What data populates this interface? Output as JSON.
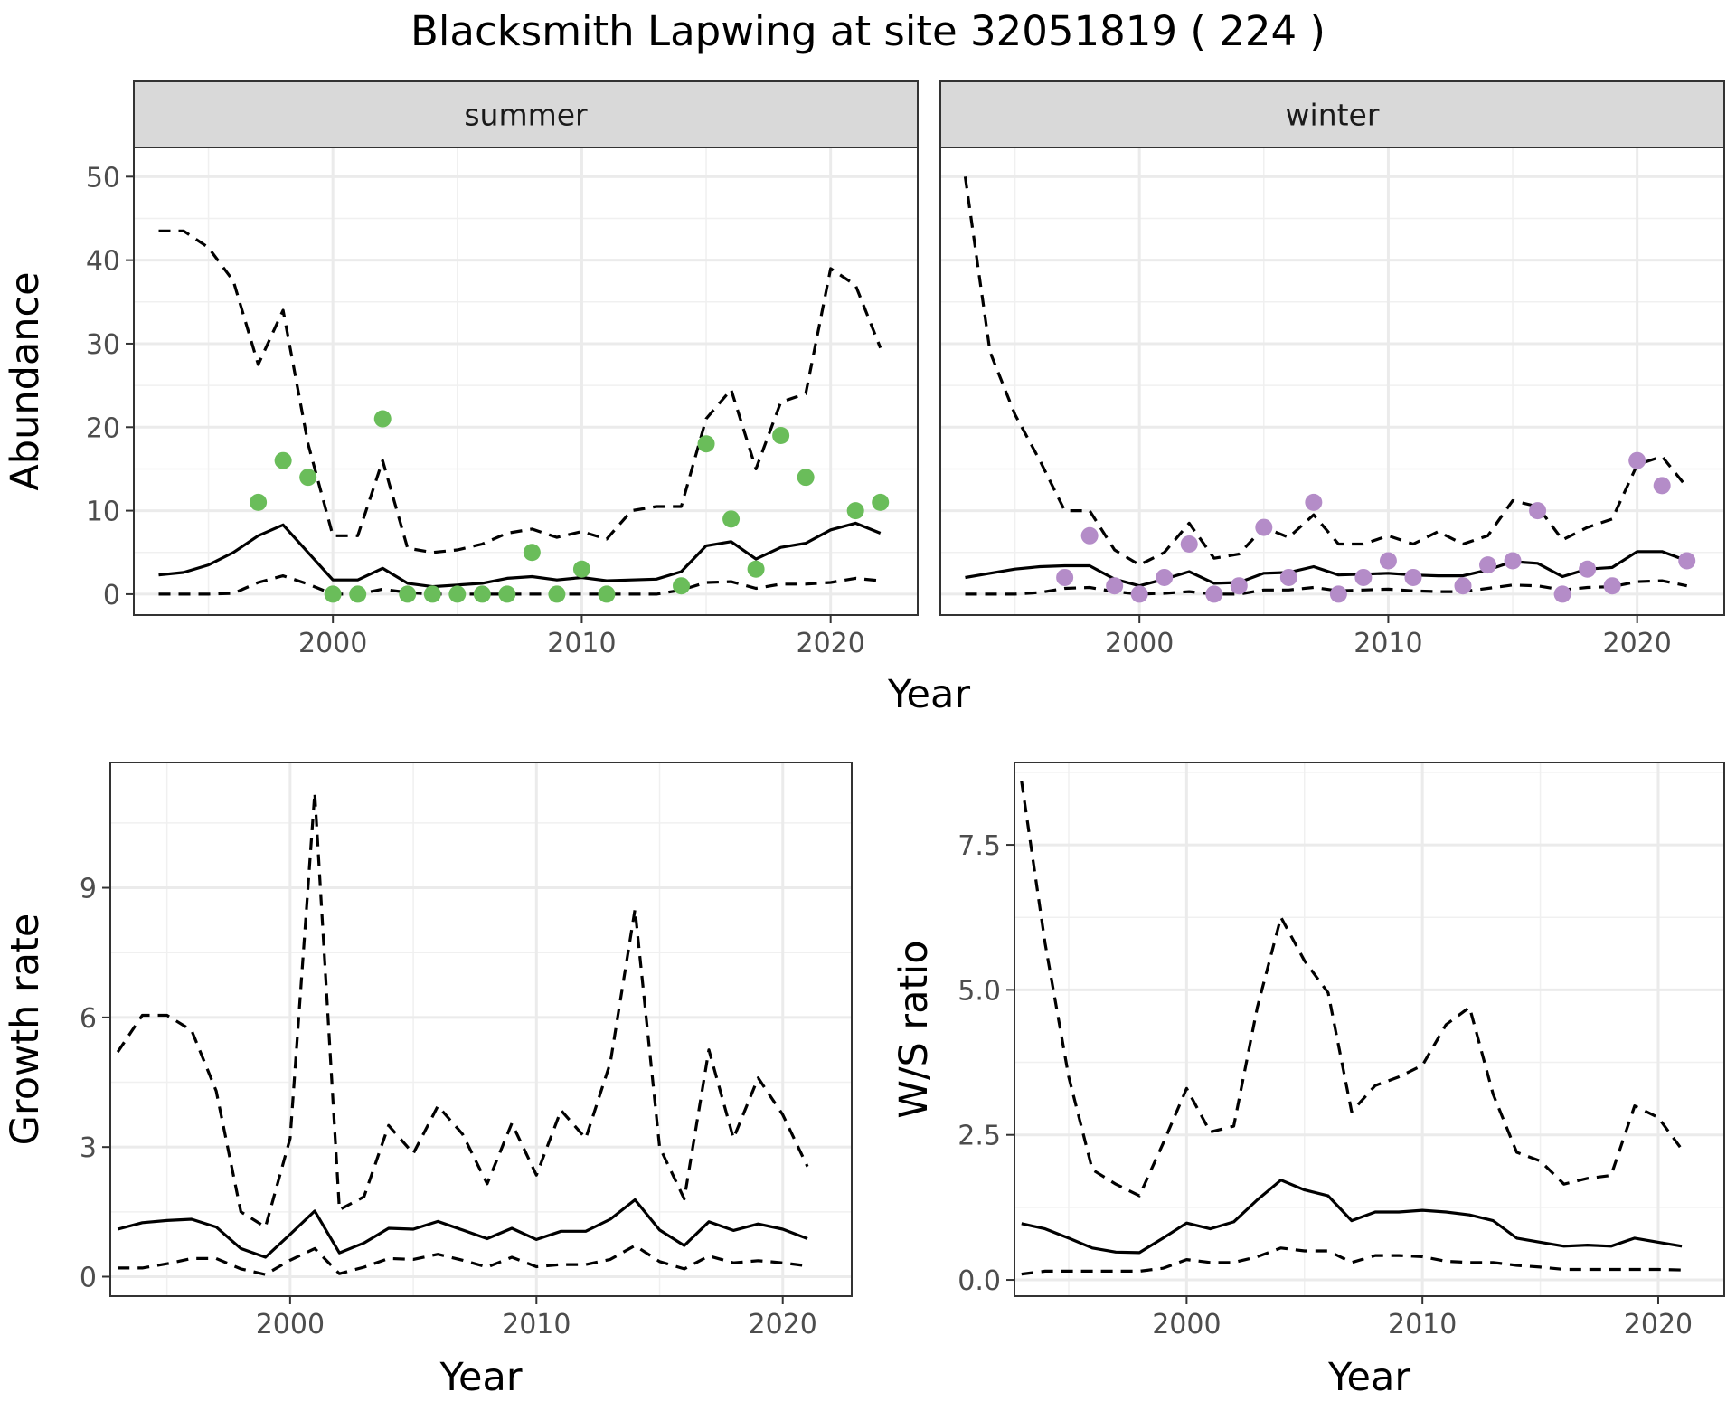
{
  "title": "Blacksmith Lapwing at site 32051819 ( 224 )",
  "chart_data": [
    {
      "type": "line",
      "panel": "summer",
      "xlabel": "Year",
      "ylabel": "Abundance",
      "xlim": [
        1992,
        2023.5
      ],
      "ylim": [
        -2.5,
        53.5
      ],
      "xticks": [
        2000,
        2010,
        2020
      ],
      "yticks": [
        0,
        10,
        20,
        30,
        40,
        50
      ],
      "grid": true,
      "point_color": "#6abd5a",
      "x": [
        1993,
        1994,
        1995,
        1996,
        1997,
        1998,
        1999,
        2000,
        2001,
        2002,
        2003,
        2004,
        2005,
        2006,
        2007,
        2008,
        2009,
        2010,
        2011,
        2012,
        2013,
        2014,
        2015,
        2016,
        2017,
        2018,
        2019,
        2020,
        2021,
        2022
      ],
      "mean": [
        2.3,
        2.6,
        3.5,
        5.0,
        7.0,
        8.3,
        5.0,
        1.7,
        1.7,
        3.1,
        1.3,
        0.9,
        1.1,
        1.3,
        1.9,
        2.1,
        1.7,
        2.0,
        1.6,
        1.7,
        1.8,
        2.7,
        5.8,
        6.3,
        4.2,
        5.6,
        6.1,
        7.7,
        8.5,
        7.3
      ],
      "upper": [
        43.5,
        43.5,
        41.5,
        37.5,
        27.5,
        34.0,
        18.0,
        7.0,
        7.0,
        16.0,
        5.5,
        5.0,
        5.3,
        6.0,
        7.3,
        7.8,
        6.8,
        7.5,
        6.6,
        10.0,
        10.5,
        10.5,
        21.0,
        24.5,
        15.0,
        23.0,
        24.0,
        39.0,
        37.0,
        29.5
      ],
      "lower": [
        0.0,
        0.0,
        0.0,
        0.1,
        1.4,
        2.2,
        1.2,
        0.0,
        0.0,
        0.6,
        0.2,
        0.0,
        0.0,
        0.0,
        0.0,
        0.0,
        0.0,
        0.0,
        0.0,
        0.0,
        0.0,
        0.5,
        1.4,
        1.5,
        0.7,
        1.2,
        1.2,
        1.4,
        1.9,
        1.6
      ],
      "points": {
        "x": [
          1997,
          1998,
          1999,
          2000,
          2001,
          2002,
          2003,
          2004,
          2005,
          2006,
          2007,
          2008,
          2009,
          2010,
          2011,
          2014,
          2015,
          2016,
          2017,
          2018,
          2019,
          2021,
          2022
        ],
        "y": [
          11,
          16,
          14,
          0,
          0,
          21,
          0,
          0,
          0,
          0,
          0,
          5,
          0,
          3,
          0,
          1,
          18,
          9,
          3,
          19,
          14,
          10,
          11
        ]
      }
    },
    {
      "type": "line",
      "panel": "winter",
      "xlabel": "Year",
      "ylabel": "Abundance",
      "xlim": [
        1992,
        2023.5
      ],
      "ylim": [
        -2.5,
        53.5
      ],
      "xticks": [
        2000,
        2010,
        2020
      ],
      "yticks": [
        0,
        10,
        20,
        30,
        40,
        50
      ],
      "grid": true,
      "point_color": "#b48cc8",
      "x": [
        1993,
        1994,
        1995,
        1996,
        1997,
        1998,
        1999,
        2000,
        2001,
        2002,
        2003,
        2004,
        2005,
        2006,
        2007,
        2008,
        2009,
        2010,
        2011,
        2012,
        2013,
        2014,
        2015,
        2016,
        2017,
        2018,
        2019,
        2020,
        2021,
        2022
      ],
      "mean": [
        2.0,
        2.5,
        3.0,
        3.3,
        3.4,
        3.4,
        1.8,
        1.0,
        1.8,
        2.7,
        1.3,
        1.4,
        2.5,
        2.6,
        3.3,
        2.3,
        2.4,
        2.5,
        2.3,
        2.2,
        2.2,
        2.9,
        3.9,
        3.7,
        2.1,
        3.0,
        3.2,
        5.1,
        5.1,
        4.0
      ],
      "upper": [
        50.0,
        29.0,
        21.5,
        16.0,
        10.0,
        10.0,
        5.3,
        3.5,
        5.0,
        8.5,
        4.3,
        4.8,
        8.0,
        6.8,
        9.5,
        6.0,
        6.0,
        7.0,
        6.0,
        7.5,
        6.0,
        7.0,
        11.2,
        10.5,
        6.5,
        8.0,
        9.0,
        15.5,
        16.5,
        12.8
      ],
      "lower": [
        0.0,
        0.0,
        0.0,
        0.2,
        0.7,
        0.8,
        0.3,
        0.0,
        0.1,
        0.3,
        0.0,
        0.0,
        0.5,
        0.5,
        0.8,
        0.4,
        0.5,
        0.6,
        0.4,
        0.3,
        0.3,
        0.7,
        1.1,
        1.0,
        0.5,
        0.8,
        0.9,
        1.5,
        1.6,
        1.0
      ],
      "points": {
        "x": [
          1997,
          1998,
          1999,
          2000,
          2001,
          2002,
          2003,
          2004,
          2005,
          2006,
          2007,
          2008,
          2009,
          2010,
          2011,
          2013,
          2014,
          2015,
          2016,
          2017,
          2018,
          2019,
          2020,
          2021,
          2022
        ],
        "y": [
          2,
          7,
          1,
          0,
          2,
          6,
          0,
          1,
          8,
          2,
          11,
          0,
          2,
          4,
          2,
          1,
          3.5,
          4,
          10,
          0,
          3,
          1,
          16,
          13,
          4
        ]
      }
    },
    {
      "type": "line",
      "panel": "growth",
      "xlabel": "Year",
      "ylabel": "Growth rate",
      "xlim": [
        1992.7,
        2022.8
      ],
      "ylim": [
        -0.45,
        11.9
      ],
      "xticks": [
        2000,
        2010,
        2020
      ],
      "yticks": [
        0,
        3,
        6,
        9
      ],
      "grid": true,
      "x": [
        1993,
        1994,
        1995,
        1996,
        1997,
        1998,
        1999,
        2000,
        2001,
        2002,
        2003,
        2004,
        2005,
        2006,
        2007,
        2008,
        2009,
        2010,
        2011,
        2012,
        2013,
        2014,
        2015,
        2016,
        2017,
        2018,
        2019,
        2020,
        2021
      ],
      "mean": [
        1.1,
        1.25,
        1.3,
        1.33,
        1.15,
        0.65,
        0.45,
        0.98,
        1.52,
        0.55,
        0.78,
        1.12,
        1.1,
        1.28,
        1.08,
        0.88,
        1.12,
        0.86,
        1.05,
        1.05,
        1.33,
        1.78,
        1.08,
        0.72,
        1.27,
        1.07,
        1.22,
        1.1,
        0.88
      ],
      "upper": [
        5.2,
        6.05,
        6.05,
        5.7,
        4.3,
        1.5,
        1.15,
        3.2,
        11.2,
        1.55,
        1.85,
        3.5,
        2.85,
        3.95,
        3.3,
        2.15,
        3.55,
        2.35,
        3.85,
        3.2,
        4.95,
        8.5,
        3.0,
        1.8,
        5.25,
        3.2,
        4.6,
        3.75,
        2.55
      ],
      "lower": [
        0.2,
        0.2,
        0.3,
        0.42,
        0.42,
        0.18,
        0.05,
        0.38,
        0.65,
        0.07,
        0.22,
        0.42,
        0.4,
        0.52,
        0.38,
        0.22,
        0.45,
        0.23,
        0.28,
        0.28,
        0.4,
        0.72,
        0.35,
        0.18,
        0.48,
        0.32,
        0.37,
        0.32,
        0.25
      ]
    },
    {
      "type": "line",
      "panel": "ratio",
      "xlabel": "Year",
      "ylabel": "W/S ratio",
      "xlim": [
        1992.7,
        2022.8
      ],
      "ylim": [
        -0.28,
        8.92
      ],
      "xticks": [
        2000,
        2010,
        2020
      ],
      "yticks": [
        0.0,
        2.5,
        5.0,
        7.5
      ],
      "yticklabels": [
        "0.0",
        "2.5",
        "5.0",
        "7.5"
      ],
      "grid": true,
      "x": [
        1993,
        1994,
        1995,
        1996,
        1997,
        1998,
        1999,
        2000,
        2001,
        2002,
        2003,
        2004,
        2005,
        2006,
        2007,
        2008,
        2009,
        2010,
        2011,
        2012,
        2013,
        2014,
        2015,
        2016,
        2017,
        2018,
        2019,
        2020,
        2021
      ],
      "mean": [
        0.97,
        0.88,
        0.72,
        0.55,
        0.48,
        0.47,
        0.72,
        0.98,
        0.88,
        1.0,
        1.38,
        1.72,
        1.55,
        1.45,
        1.02,
        1.17,
        1.17,
        1.2,
        1.17,
        1.12,
        1.02,
        0.72,
        0.65,
        0.58,
        0.6,
        0.58,
        0.72,
        0.65,
        0.58
      ],
      "upper": [
        8.6,
        5.8,
        3.5,
        1.9,
        1.65,
        1.45,
        2.35,
        3.3,
        2.55,
        2.65,
        4.7,
        6.25,
        5.5,
        4.95,
        2.9,
        3.35,
        3.5,
        3.7,
        4.4,
        4.7,
        3.2,
        2.2,
        2.05,
        1.65,
        1.75,
        1.8,
        3.0,
        2.8,
        2.25
      ],
      "lower": [
        0.1,
        0.15,
        0.15,
        0.15,
        0.15,
        0.15,
        0.2,
        0.35,
        0.3,
        0.3,
        0.4,
        0.55,
        0.5,
        0.5,
        0.3,
        0.42,
        0.42,
        0.4,
        0.32,
        0.3,
        0.3,
        0.25,
        0.22,
        0.18,
        0.18,
        0.18,
        0.18,
        0.18,
        0.17
      ]
    }
  ]
}
